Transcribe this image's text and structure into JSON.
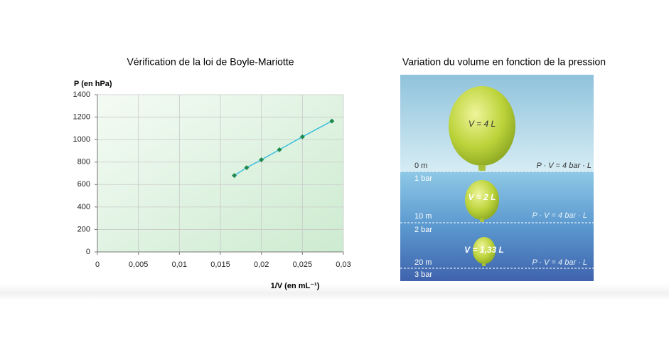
{
  "chart_data": {
    "type": "line",
    "title": "Vérification de la loi de Boyle-Mariotte",
    "y_label": "P (en hPa)",
    "x_label": "1/V (en mL⁻¹)",
    "x": [
      0.0167,
      0.0182,
      0.02,
      0.0222,
      0.025,
      0.0286
    ],
    "values": [
      680,
      750,
      820,
      910,
      1025,
      1165
    ],
    "color": "#3cc0dc",
    "marker_color": "#1f8a4c",
    "xlim": [
      0,
      0.03
    ],
    "xticks": [
      0,
      {
        "value": 0.005,
        "label": "0,005"
      },
      {
        "value": 0.01,
        "label": "0,01"
      },
      {
        "value": 0.015,
        "label": "0,015"
      },
      {
        "value": 0.02,
        "label": "0,02"
      },
      {
        "value": 0.025,
        "label": "0,025"
      },
      {
        "value": 0.03,
        "label": "0,03"
      }
    ],
    "ylim": [
      0,
      1400
    ],
    "yticks": [
      0,
      200,
      400,
      600,
      800,
      1000,
      1200,
      1400
    ],
    "grid": true
  },
  "illustration": {
    "title": "Variation du volume en fonction de la pression",
    "balloons": [
      "V = 4 L",
      "V = 2 L",
      "V = 1,33 L"
    ],
    "depths": [
      "0 m",
      "10 m",
      "20 m"
    ],
    "pressures": [
      "1 bar",
      "2 bar",
      "3 bar"
    ],
    "products": [
      "P · V = 4 bar · L",
      "P · V = 4 bar · L",
      "P · V = 4 bar · L"
    ]
  }
}
